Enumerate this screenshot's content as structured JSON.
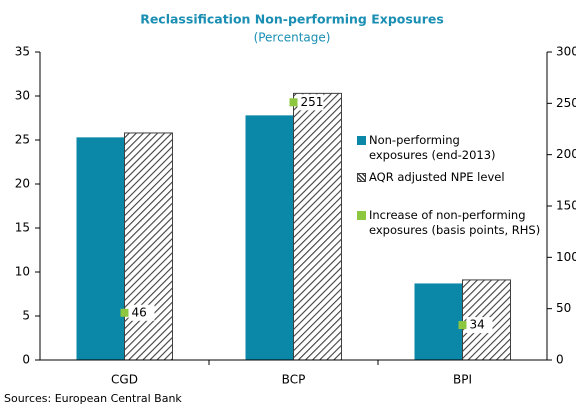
{
  "chart_data": {
    "type": "bar",
    "title": "Reclassification  Non-performing  Exposures",
    "subtitle": "(Percentage)",
    "source": "Sources: European Central Bank",
    "categories": [
      "CGD",
      "BCP",
      "BPI"
    ],
    "series": [
      {
        "name": "Non-performing exposures (end-2013)",
        "color": "#0b87a8",
        "values": [
          25.3,
          27.8,
          8.7
        ]
      },
      {
        "name": "AQR adjusted NPE level",
        "color": "#404040",
        "hatch": true,
        "values": [
          25.8,
          30.3,
          9.1
        ]
      },
      {
        "name": "Increase of non-performing exposures (basis points, RHS)",
        "type": "scatter",
        "axis": "y2",
        "color": "#8dc63f",
        "values": [
          46,
          251,
          34
        ]
      }
    ],
    "ylim": [
      0,
      35
    ],
    "yticks": [
      0,
      5,
      10,
      15,
      20,
      25,
      30,
      35
    ],
    "y2lim": [
      0,
      300
    ],
    "y2ticks": [
      0,
      50,
      100,
      150,
      200,
      250,
      300
    ],
    "grid": false
  }
}
